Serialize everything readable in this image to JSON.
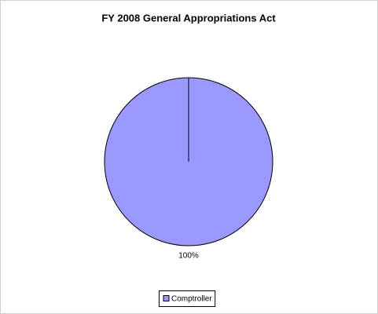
{
  "chart_data": {
    "type": "pie",
    "title": "FY 2008 General Appropriations Act",
    "categories": [
      "Comptroller"
    ],
    "values": [
      100
    ],
    "value_labels": [
      "100%"
    ],
    "colors": [
      "#9999ff"
    ],
    "legend": "bottom"
  }
}
